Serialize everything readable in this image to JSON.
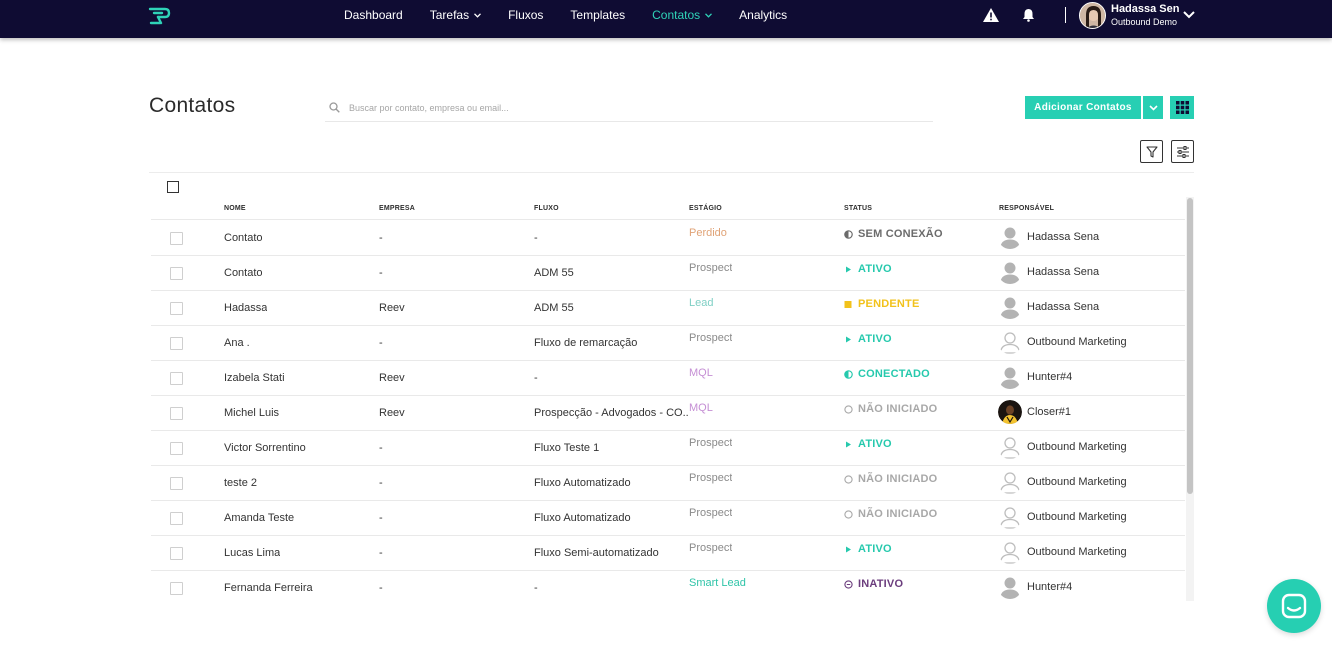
{
  "nav": {
    "items": [
      {
        "label": "Dashboard",
        "dropdown": false,
        "active": false
      },
      {
        "label": "Tarefas",
        "dropdown": true,
        "active": false
      },
      {
        "label": "Fluxos",
        "dropdown": false,
        "active": false
      },
      {
        "label": "Templates",
        "dropdown": false,
        "active": false
      },
      {
        "label": "Contatos",
        "dropdown": true,
        "active": true
      },
      {
        "label": "Analytics",
        "dropdown": false,
        "active": false
      }
    ],
    "user_name": "Hadassa Sena",
    "user_org": "Outbound Demo"
  },
  "page": {
    "title": "Contatos",
    "search_placeholder": "Buscar por contato, empresa ou email...",
    "add_button": "Adicionar Contatos"
  },
  "columns": [
    "NOME",
    "EMPRESA",
    "FLUXO",
    "ESTÁGIO",
    "STATUS",
    "RESPONSÁVEL"
  ],
  "rows": [
    {
      "nome": "Contato",
      "empresa": "-",
      "fluxo": "-",
      "estagio": "Perdido",
      "status": "SEM CONEXÃO",
      "responsavel": "Hadassa Sena"
    },
    {
      "nome": "Contato",
      "empresa": "-",
      "fluxo": "ADM 55",
      "estagio": "Prospect",
      "status": "ATIVO",
      "responsavel": "Hadassa Sena"
    },
    {
      "nome": "Hadassa",
      "empresa": "Reev",
      "fluxo": "ADM 55",
      "estagio": "Lead",
      "status": "PENDENTE",
      "responsavel": "Hadassa Sena"
    },
    {
      "nome": "Ana .",
      "empresa": "-",
      "fluxo": "Fluxo de remarcação",
      "estagio": "Prospect",
      "status": "ATIVO",
      "responsavel": "Outbound Marketing"
    },
    {
      "nome": "Izabela Stati",
      "empresa": "Reev",
      "fluxo": "-",
      "estagio": "MQL",
      "status": "CONECTADO",
      "responsavel": "Hunter#4"
    },
    {
      "nome": "Michel Luis",
      "empresa": "Reev",
      "fluxo": "Prospecção - Advogados - CO...",
      "estagio": "MQL",
      "status": "NÃO INICIADO",
      "responsavel": "Closer#1"
    },
    {
      "nome": "Victor Sorrentino",
      "empresa": "-",
      "fluxo": "Fluxo Teste 1",
      "estagio": "Prospect",
      "status": "ATIVO",
      "responsavel": "Outbound Marketing"
    },
    {
      "nome": "teste 2",
      "empresa": "-",
      "fluxo": "Fluxo Automatizado",
      "estagio": "Prospect",
      "status": "NÃO INICIADO",
      "responsavel": "Outbound Marketing"
    },
    {
      "nome": "Amanda Teste",
      "empresa": "-",
      "fluxo": "Fluxo Automatizado",
      "estagio": "Prospect",
      "status": "NÃO INICIADO",
      "responsavel": "Outbound Marketing"
    },
    {
      "nome": "Lucas Lima",
      "empresa": "-",
      "fluxo": "Fluxo Semi-automatizado",
      "estagio": "Prospect",
      "status": "ATIVO",
      "responsavel": "Outbound Marketing"
    },
    {
      "nome": "Fernanda Ferreira",
      "empresa": "-",
      "fluxo": "-",
      "estagio": "Smart Lead",
      "status": "INATIVO",
      "responsavel": "Hunter#4"
    }
  ],
  "stage_colors": {
    "Perdido": "#e0a377",
    "Prospect": "#8a8a8a",
    "Lead": "#7fcfc4",
    "MQL": "#c58fd4",
    "Smart Lead": "#2fc4a8"
  },
  "status_styles": {
    "SEM CONEXÃO": {
      "color": "#6b6b6b",
      "icon": "half-circle-icon"
    },
    "ATIVO": {
      "color": "#26c9ad",
      "icon": "play-icon"
    },
    "PENDENTE": {
      "color": "#f2c21b",
      "icon": "square-icon"
    },
    "CONECTADO": {
      "color": "#26c9ad",
      "icon": "half-circle-icon"
    },
    "NÃO INICIADO": {
      "color": "#a8a8a8",
      "icon": "circle-outline-icon"
    },
    "INATIVO": {
      "color": "#6b3d7d",
      "icon": "circle-dot-icon"
    }
  },
  "avatar_types": {
    "Hadassa Sena": "gray",
    "Outbound Marketing": "outline",
    "Hunter#4": "gray",
    "Closer#1": "photo"
  },
  "accent_color": "#27cfb3",
  "nav_bg": "#0f0c33"
}
